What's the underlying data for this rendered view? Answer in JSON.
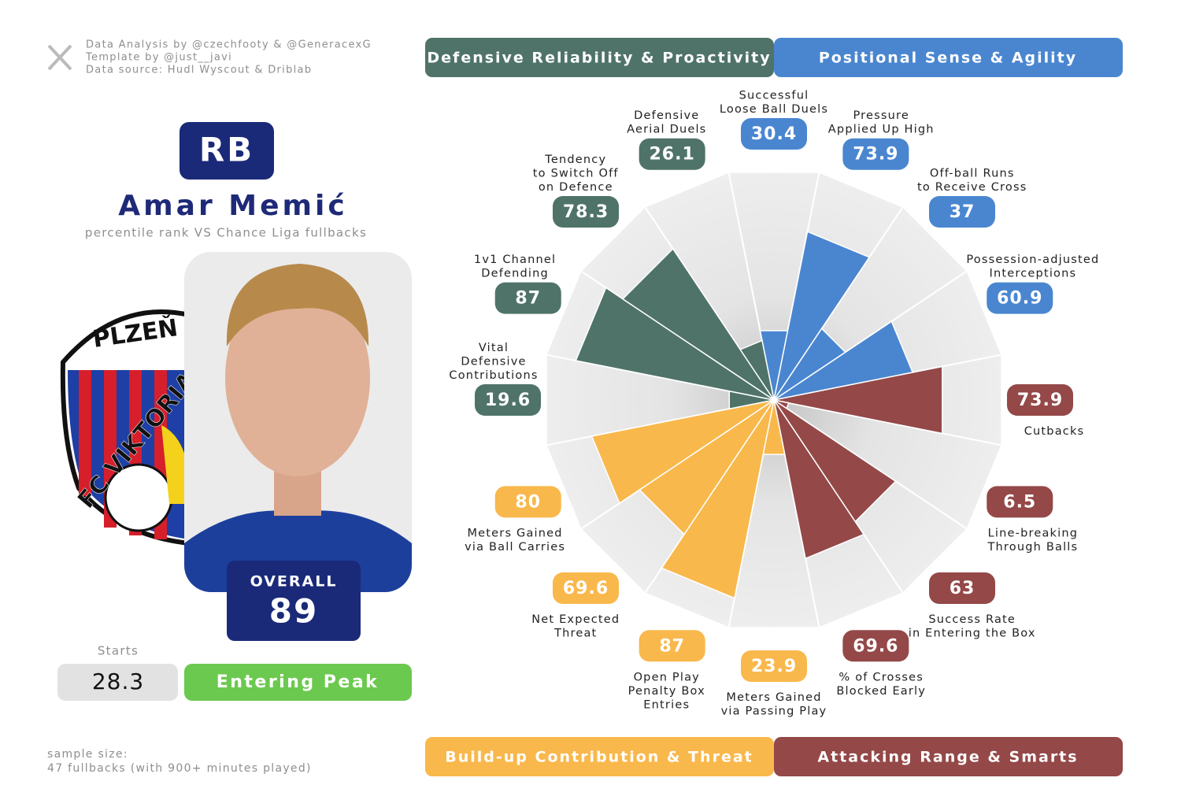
{
  "credits": [
    "Data Analysis by @czechfooty & @GeneracexG",
    "Template by @just__javi",
    "Data source: Hudl Wyscout & Driblab"
  ],
  "player": {
    "position": "RB",
    "name": "Amar Memić",
    "subtitle": "percentile rank VS Chance Liga fullbacks",
    "club_top": "PLZEŇ",
    "club_name": "FC VIKTORIA",
    "overall_label": "OVERALL",
    "overall_value": 89,
    "starts_label": "Starts",
    "starts_value": 28.3,
    "status": "Entering Peak"
  },
  "sample_size": [
    "sample size:",
    "47 fullbacks (with 900+ minutes played)"
  ],
  "chart_data": {
    "type": "pizza",
    "ylim": [
      0,
      100
    ],
    "series": [
      {
        "name": "Positional Sense & Agility",
        "color": "#4a86d0",
        "categories": [
          [
            "Successful",
            "Loose Ball Duels"
          ],
          [
            "Pressure",
            "Applied Up High"
          ],
          [
            "Off-ball Runs",
            "to Receive Cross"
          ],
          [
            "Possession-adjusted",
            "Interceptions"
          ]
        ],
        "values": [
          30.4,
          73.9,
          37,
          60.9
        ]
      },
      {
        "name": "Attacking Range & Smarts",
        "color": "#944848",
        "categories": [
          [
            "Cutbacks"
          ],
          [
            "Line-breaking",
            "Through Balls"
          ],
          [
            "Success Rate",
            "in Entering the Box"
          ],
          [
            "% of Crosses",
            "Blocked Early"
          ]
        ],
        "values": [
          73.9,
          6.5,
          63,
          69.6
        ]
      },
      {
        "name": "Build-up Contribution & Threat",
        "color": "#f9b84c",
        "categories": [
          [
            "Meters Gained",
            "via Passing Play"
          ],
          [
            "Open Play",
            "Penalty Box",
            "Entries"
          ],
          [
            "Net Expected",
            "Threat"
          ],
          [
            "Meters Gained",
            "via Ball Carries"
          ]
        ],
        "values": [
          23.9,
          87,
          69.6,
          80
        ]
      },
      {
        "name": "Defensive Reliability & Proactivity",
        "color": "#4f7369",
        "categories": [
          [
            "Vital",
            "Defensive",
            "Contributions"
          ],
          [
            "1v1 Channel",
            "Defending"
          ],
          [
            "Tendency",
            "to Switch Off",
            "on Defence"
          ],
          [
            "Defensive",
            "Aerial Duels"
          ]
        ],
        "values": [
          19.6,
          87,
          78.3,
          26.1
        ]
      }
    ]
  }
}
